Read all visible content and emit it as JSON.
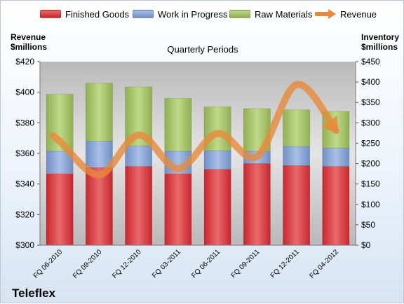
{
  "company": "Teleflex",
  "chart_data": {
    "type": "bar",
    "title": "Quarterly Periods",
    "categories": [
      "FQ 06-2010",
      "FQ 09-2010",
      "FQ 12-2010",
      "FQ 03-2011",
      "FQ 06-2011",
      "FQ 09-2011",
      "FQ 12-2011",
      "FQ 04-2012"
    ],
    "left_axis": {
      "label": "Revenue\n$millions",
      "min": 300,
      "max": 420,
      "step": 20,
      "ticks": [
        "$300",
        "$320",
        "$340",
        "$360",
        "$380",
        "$400",
        "$420"
      ]
    },
    "right_axis": {
      "label": "Inventory\n$millions",
      "min": 0,
      "max": 450,
      "step": 50,
      "ticks": [
        "$0",
        "$50",
        "$100",
        "$150",
        "$200",
        "$250",
        "$300",
        "$350",
        "$400",
        "$450"
      ]
    },
    "stacked": true,
    "series": [
      {
        "name": "Finished Goods",
        "axis": "right",
        "color": "#c9262b",
        "values": [
          175,
          190,
          193,
          175,
          186,
          200,
          195,
          193
        ]
      },
      {
        "name": "Work in Progress",
        "axis": "right",
        "color": "#6f8fc5",
        "values": [
          55,
          65,
          50,
          55,
          45,
          30,
          47,
          45
        ]
      },
      {
        "name": "Raw Materials",
        "axis": "right",
        "color": "#8fb051",
        "values": [
          140,
          142,
          145,
          130,
          108,
          105,
          90,
          90
        ]
      },
      {
        "name": "Revenue",
        "type": "line",
        "axis": "left",
        "color": "#e8893a",
        "values": [
          368,
          346,
          372,
          350,
          373,
          358,
          405,
          375
        ]
      }
    ],
    "grid": false,
    "legend_position": "top"
  }
}
